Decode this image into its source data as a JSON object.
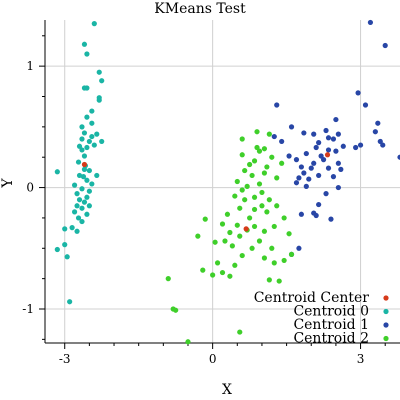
{
  "chart_data": {
    "type": "scatter",
    "title": "KMeans Test",
    "xlabel": "X",
    "ylabel": "Y",
    "xlim": [
      -3.4,
      3.8
    ],
    "ylim": [
      -1.28,
      1.38
    ],
    "x_ticks": [
      -3,
      0,
      3
    ],
    "y_ticks": [
      -1,
      0,
      1
    ],
    "grid": true,
    "legend_position": "bottom-right",
    "series": [
      {
        "name": "Centroid 0",
        "color": "#1ab5a5",
        "points": [
          [
            -2.4,
            1.35
          ],
          [
            -2.6,
            1.18
          ],
          [
            -2.55,
            1.1
          ],
          [
            -2.3,
            0.95
          ],
          [
            -2.25,
            0.88
          ],
          [
            -2.55,
            0.82
          ],
          [
            -2.6,
            0.82
          ],
          [
            -2.3,
            0.74
          ],
          [
            -2.3,
            0.72
          ],
          [
            -2.45,
            0.63
          ],
          [
            -2.55,
            0.58
          ],
          [
            -2.45,
            0.53
          ],
          [
            -2.65,
            0.5
          ],
          [
            -2.6,
            0.45
          ],
          [
            -2.35,
            0.44
          ],
          [
            -2.45,
            0.42
          ],
          [
            -2.65,
            0.4
          ],
          [
            -2.5,
            0.38
          ],
          [
            -2.25,
            0.38
          ],
          [
            -2.4,
            0.35
          ],
          [
            -2.7,
            0.34
          ],
          [
            -2.55,
            0.33
          ],
          [
            -2.65,
            0.31
          ],
          [
            -2.6,
            0.26
          ],
          [
            -2.72,
            0.21
          ],
          [
            -2.58,
            0.18
          ],
          [
            -2.6,
            0.15
          ],
          [
            -2.5,
            0.14
          ],
          [
            -2.7,
            0.1
          ],
          [
            -2.62,
            0.09
          ],
          [
            -2.35,
            0.1
          ],
          [
            -2.55,
            0.06
          ],
          [
            -2.45,
            0.03
          ],
          [
            -2.8,
            0.02
          ],
          [
            -2.65,
            -0.01
          ],
          [
            -2.5,
            -0.03
          ],
          [
            -2.75,
            -0.05
          ],
          [
            -2.55,
            -0.08
          ],
          [
            -2.7,
            -0.1
          ],
          [
            -2.6,
            -0.12
          ],
          [
            -2.75,
            -0.15
          ],
          [
            -2.5,
            -0.15
          ],
          [
            -2.65,
            -0.17
          ],
          [
            -2.8,
            -0.2
          ],
          [
            -2.55,
            -0.22
          ],
          [
            -2.72,
            -0.25
          ],
          [
            -2.65,
            -0.28
          ],
          [
            -2.85,
            -0.33
          ],
          [
            -2.75,
            -0.36
          ],
          [
            -3.15,
            0.13
          ],
          [
            -3.0,
            -0.34
          ],
          [
            -3.0,
            -0.47
          ],
          [
            -3.15,
            -0.51
          ],
          [
            -2.95,
            -0.57
          ],
          [
            -2.9,
            -0.94
          ]
        ]
      },
      {
        "name": "Centroid 1",
        "color": "#2846a6",
        "points": [
          [
            3.2,
            1.36
          ],
          [
            3.5,
            1.17
          ],
          [
            2.95,
            0.78
          ],
          [
            1.3,
            0.68
          ],
          [
            3.1,
            0.68
          ],
          [
            2.5,
            0.56
          ],
          [
            1.6,
            0.5
          ],
          [
            3.35,
            0.53
          ],
          [
            2.3,
            0.47
          ],
          [
            1.85,
            0.45
          ],
          [
            2.05,
            0.44
          ],
          [
            2.55,
            0.44
          ],
          [
            3.3,
            0.46
          ],
          [
            1.25,
            0.42
          ],
          [
            2.35,
            0.41
          ],
          [
            2.45,
            0.4
          ],
          [
            1.4,
            0.38
          ],
          [
            2.15,
            0.37
          ],
          [
            3.4,
            0.38
          ],
          [
            3.0,
            0.35
          ],
          [
            2.1,
            0.33
          ],
          [
            2.65,
            0.34
          ],
          [
            2.35,
            0.31
          ],
          [
            2.5,
            0.3
          ],
          [
            2.9,
            0.33
          ],
          [
            3.45,
            0.35
          ],
          [
            1.9,
            0.28
          ],
          [
            2.2,
            0.26
          ],
          [
            1.55,
            0.26
          ],
          [
            1.7,
            0.23
          ],
          [
            2.25,
            0.23
          ],
          [
            2.05,
            0.2
          ],
          [
            2.55,
            0.2
          ],
          [
            3.8,
            0.25
          ],
          [
            1.8,
            0.17
          ],
          [
            2.0,
            0.16
          ],
          [
            2.35,
            0.16
          ],
          [
            2.6,
            0.15
          ],
          [
            1.85,
            0.12
          ],
          [
            2.15,
            0.1
          ],
          [
            1.75,
            0.08
          ],
          [
            1.95,
            0.07
          ],
          [
            2.45,
            0.09
          ],
          [
            1.7,
            0.04
          ],
          [
            1.9,
            0.01
          ],
          [
            2.55,
            0.0
          ],
          [
            2.3,
            -0.05
          ],
          [
            2.15,
            -0.14
          ],
          [
            1.8,
            -0.22
          ],
          [
            2.05,
            -0.21
          ],
          [
            2.1,
            -0.23
          ],
          [
            2.4,
            -0.26
          ],
          [
            1.75,
            -0.5
          ],
          [
            1.6,
            -0.55
          ]
        ]
      },
      {
        "name": "Centroid 2",
        "color": "#3fcf2a",
        "points": [
          [
            0.9,
            0.46
          ],
          [
            1.15,
            0.44
          ],
          [
            0.6,
            0.4
          ],
          [
            0.9,
            0.33
          ],
          [
            1.05,
            0.32
          ],
          [
            0.95,
            0.3
          ],
          [
            0.6,
            0.27
          ],
          [
            1.2,
            0.25
          ],
          [
            0.85,
            0.22
          ],
          [
            1.4,
            0.2
          ],
          [
            0.75,
            0.19
          ],
          [
            1.1,
            0.17
          ],
          [
            0.65,
            0.14
          ],
          [
            1.05,
            0.12
          ],
          [
            0.8,
            0.1
          ],
          [
            1.3,
            0.08
          ],
          [
            0.5,
            0.05
          ],
          [
            0.95,
            0.03
          ],
          [
            0.7,
            0.01
          ],
          [
            0.6,
            -0.02
          ],
          [
            1.0,
            -0.04
          ],
          [
            0.45,
            -0.07
          ],
          [
            0.85,
            -0.08
          ],
          [
            0.65,
            -0.1
          ],
          [
            1.15,
            -0.1
          ],
          [
            1.3,
            -0.15
          ],
          [
            1.0,
            -0.15
          ],
          [
            0.55,
            -0.17
          ],
          [
            0.85,
            -0.18
          ],
          [
            1.1,
            -0.2
          ],
          [
            0.3,
            -0.22
          ],
          [
            0.75,
            -0.25
          ],
          [
            1.45,
            -0.25
          ],
          [
            -0.15,
            -0.26
          ],
          [
            0.2,
            -0.3
          ],
          [
            0.5,
            -0.31
          ],
          [
            0.85,
            -0.32
          ],
          [
            1.25,
            -0.32
          ],
          [
            0.7,
            -0.35
          ],
          [
            1.05,
            -0.36
          ],
          [
            0.35,
            -0.37
          ],
          [
            0.55,
            -0.4
          ],
          [
            1.55,
            -0.38
          ],
          [
            0.25,
            -0.44
          ],
          [
            0.95,
            -0.44
          ],
          [
            -0.3,
            -0.4
          ],
          [
            0.05,
            -0.45
          ],
          [
            0.4,
            -0.48
          ],
          [
            0.8,
            -0.5
          ],
          [
            1.2,
            -0.5
          ],
          [
            1.6,
            -0.55
          ],
          [
            0.6,
            -0.56
          ],
          [
            1.05,
            -0.58
          ],
          [
            0.1,
            -0.62
          ],
          [
            0.45,
            -0.64
          ],
          [
            1.45,
            -0.6
          ],
          [
            1.25,
            -0.62
          ],
          [
            -0.2,
            -0.68
          ],
          [
            0.0,
            -0.72
          ],
          [
            0.2,
            -0.7
          ],
          [
            0.35,
            -0.73
          ],
          [
            1.15,
            -0.76
          ],
          [
            1.35,
            -0.77
          ],
          [
            -0.9,
            -0.75
          ],
          [
            -0.8,
            -1.0
          ],
          [
            -0.75,
            -1.01
          ],
          [
            0.55,
            -1.19
          ],
          [
            -0.5,
            -1.27
          ]
        ]
      }
    ],
    "centroids": {
      "name": "Centroid Center",
      "color": "#d63a1a",
      "points": [
        [
          -2.6,
          0.19
        ],
        [
          2.33,
          0.27
        ],
        [
          0.68,
          -0.34
        ]
      ]
    },
    "legend": [
      {
        "label": "Centroid Center",
        "color": "#d63a1a"
      },
      {
        "label": "Centroid 0",
        "color": "#1ab5a5"
      },
      {
        "label": "Centroid 1",
        "color": "#2846a6"
      },
      {
        "label": "Centroid 2",
        "color": "#3fcf2a"
      }
    ]
  }
}
